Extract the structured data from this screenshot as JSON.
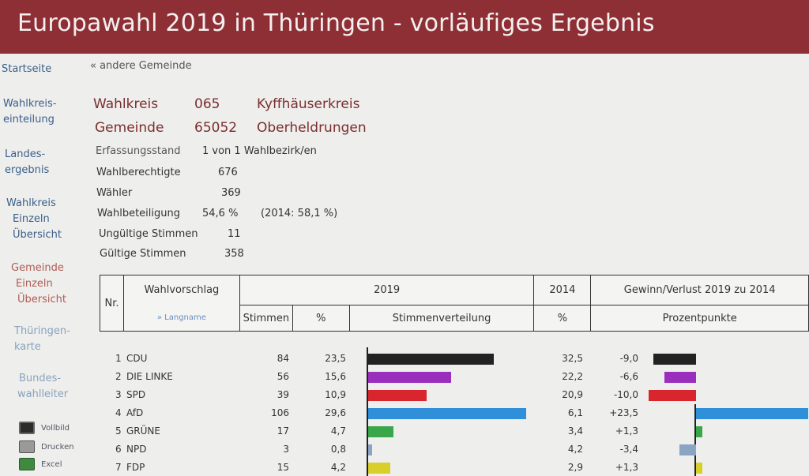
{
  "header": {
    "title": "Europawahl 2019 in Thüringen - vorläufiges Ergebnis"
  },
  "nav": {
    "startseite": "Startseite",
    "wahlkreis_einteilung": [
      "Wahlkreis-",
      "einteilung"
    ],
    "landes_ergebnis": [
      "Landes-",
      "ergebnis"
    ],
    "wahlkreis_uebersicht": [
      "Wahlkreis",
      "Einzeln",
      "Übersicht"
    ],
    "gemeinde_uebersicht": [
      "Gemeinde",
      "Einzeln",
      "Übersicht"
    ],
    "thueringen_karte": [
      "Thüringen-",
      "karte"
    ],
    "bundeswahlleiter": [
      "Bundes-",
      "wahlleiter"
    ],
    "vollbild": "Vollbild",
    "drucken": "Drucken",
    "excel": "Excel"
  },
  "back_link": "« andere Gemeinde",
  "location": {
    "wahlkreis_label": "Wahlkreis",
    "wahlkreis_nr": "065",
    "wahlkreis_name": "Kyffhäuserkreis",
    "gemeinde_label": "Gemeinde",
    "gemeinde_nr": "65052",
    "gemeinde_name": "Oberheldrungen"
  },
  "stats": {
    "erfassung_label": "Erfassungsstand",
    "erfassung_value": "1 von 1 Wahlbezirk/en",
    "berechtigte_label": "Wahlberechtigte",
    "berechtigte_value": "676",
    "waehler_label": "Wähler",
    "waehler_value": "369",
    "beteiligung_label": "Wahlbeteiligung",
    "beteiligung_value": "54,6 %",
    "beteiligung_2014": "(2014: 58,1 %)",
    "ungueltig_label": "Ungültige Stimmen",
    "ungueltig_value": "11",
    "gueltig_label": "Gültige Stimmen",
    "gueltig_value": "358"
  },
  "table_header": {
    "nr": "Nr.",
    "wahlvorschlag": "Wahlvorschlag",
    "langname": "» Langname",
    "year_2019": "2019",
    "year_2014": "2014",
    "gewinn": "Gewinn/Verlust 2019 zu 2014",
    "stimmen": "Stimmen",
    "pct": "%",
    "verteilung": "Stimmenverteilung",
    "pct_2014": "%",
    "prozentpunkte": "Prozentpunkte"
  },
  "rows": [
    {
      "nr": "1",
      "name": "CDU",
      "stimmen": "84",
      "pct": "23,5",
      "pct_2014": "32,5",
      "diff": "-9,0",
      "color": "#222222",
      "pct_val": 23.5,
      "diff_val": -9.0
    },
    {
      "nr": "2",
      "name": "DIE LINKE",
      "stimmen": "56",
      "pct": "15,6",
      "pct_2014": "22,2",
      "diff": "-6,6",
      "color": "#9b2fbd",
      "pct_val": 15.6,
      "diff_val": -6.6
    },
    {
      "nr": "3",
      "name": "SPD",
      "stimmen": "39",
      "pct": "10,9",
      "pct_2014": "20,9",
      "diff": "-10,0",
      "color": "#d9252d",
      "pct_val": 10.9,
      "diff_val": -10.0
    },
    {
      "nr": "4",
      "name": "AfD",
      "stimmen": "106",
      "pct": "29,6",
      "pct_2014": "6,1",
      "diff": "+23,5",
      "color": "#2f8fd9",
      "pct_val": 29.6,
      "diff_val": 23.5
    },
    {
      "nr": "5",
      "name": "GRÜNE",
      "stimmen": "17",
      "pct": "4,7",
      "pct_2014": "3,4",
      "diff": "+1,3",
      "color": "#3aa64a",
      "pct_val": 4.7,
      "diff_val": 1.3
    },
    {
      "nr": "6",
      "name": "NPD",
      "stimmen": "3",
      "pct": "0,8",
      "pct_2014": "4,2",
      "diff": "-3,4",
      "color": "#8aa4c4",
      "pct_val": 0.8,
      "diff_val": -3.4
    },
    {
      "nr": "7",
      "name": "FDP",
      "stimmen": "15",
      "pct": "4,2",
      "pct_2014": "2,9",
      "diff": "+1,3",
      "color": "#d8cf2a",
      "pct_val": 4.2,
      "diff_val": 1.3
    }
  ]
}
